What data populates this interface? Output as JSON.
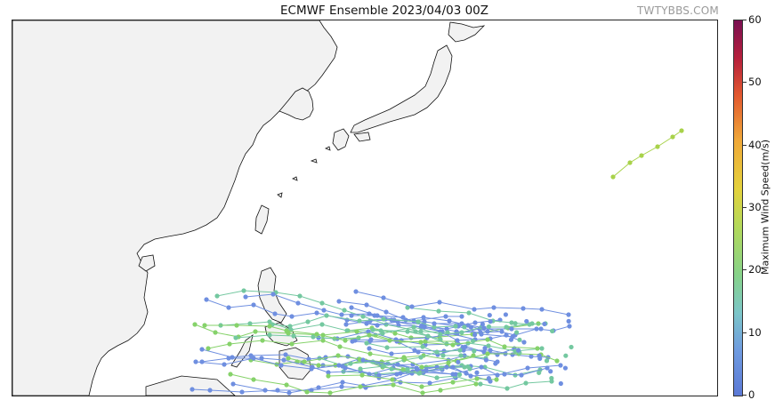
{
  "header": {
    "title": "ECMWF Ensemble 2023/04/03 00Z",
    "watermark": "TWTYBBS.COM"
  },
  "colorbar": {
    "label": "Maximum Wind Speed(m/s)",
    "ticks": [
      "0",
      "10",
      "20",
      "30",
      "40",
      "50",
      "60"
    ],
    "range": [
      0,
      60
    ],
    "colors": [
      "#5b79d6",
      "#7cc6c9",
      "#86d28a",
      "#e4d23c",
      "#f0a838",
      "#e2582f",
      "#7a0f52"
    ]
  },
  "map": {
    "land_color": "#f2f2f2",
    "coast_color": "#111111",
    "region": "Western North Pacific / East Asia",
    "track_colors": {
      "weak": "#6f8fe0",
      "moderate": "#74c8a0",
      "strong": "#86d26a",
      "northeast_track": "#a8d24a"
    },
    "ensemble_members_shown": 40,
    "highlight_track_wind_ms": 22
  }
}
